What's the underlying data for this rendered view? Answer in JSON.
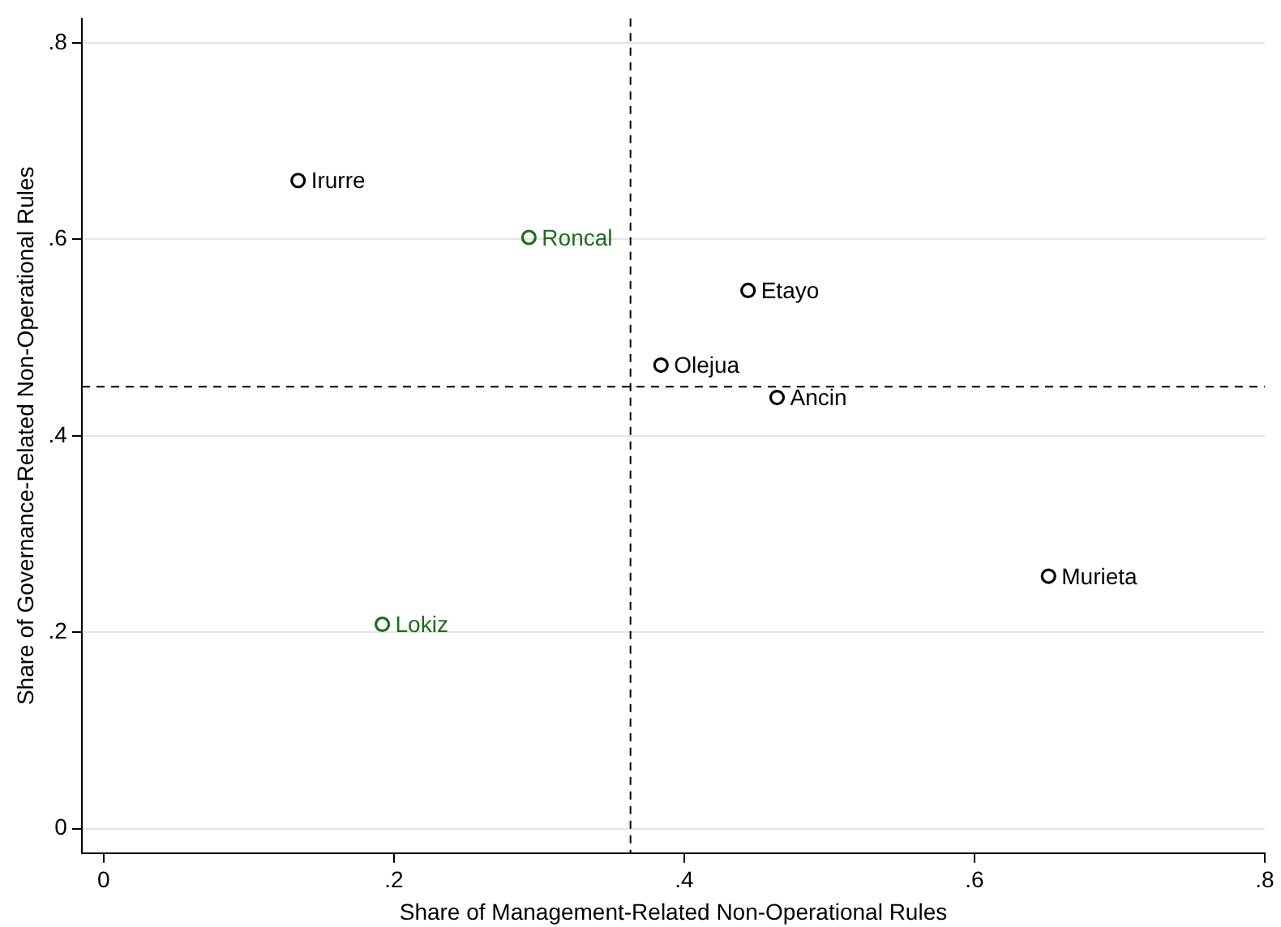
{
  "chart_data": {
    "type": "scatter",
    "xlabel": "Share of Management-Related Non-Operational Rules",
    "ylabel": "Share of Governance-Related Non-Operational Rules",
    "series": [
      {
        "color": "#000000",
        "x": [
          0.134,
          0.444,
          0.384,
          0.464,
          0.651
        ],
        "values": [
          0.66,
          0.548,
          0.472,
          0.439,
          0.257
        ]
      },
      {
        "color": "#1a6e1a",
        "x": [
          0.293,
          0.192
        ],
        "values": [
          0.602,
          0.208
        ]
      }
    ],
    "annotations": [
      {
        "text": "Irurre",
        "x": 0.134,
        "y": 0.66
      },
      {
        "text": "Roncal",
        "x": 0.293,
        "y": 0.602
      },
      {
        "text": "Etayo",
        "x": 0.444,
        "y": 0.548
      },
      {
        "text": "Olejua",
        "x": 0.384,
        "y": 0.472
      },
      {
        "text": "Ancin",
        "x": 0.464,
        "y": 0.439
      },
      {
        "text": "Murieta",
        "x": 0.651,
        "y": 0.257
      },
      {
        "text": "Lokiz",
        "x": 0.192,
        "y": 0.208
      }
    ],
    "ref_lines": [
      {
        "axis": "x",
        "value": 0.363,
        "line_style": "dashed",
        "color": "#000000"
      },
      {
        "axis": "y",
        "value": 0.45,
        "line_style": "dashed",
        "color": "#000000"
      }
    ],
    "xlim": [
      -0.015,
      0.8
    ],
    "ylim": [
      -0.025,
      0.825
    ],
    "xticks": [
      0,
      {
        "value": 0.2,
        "label": ".2"
      },
      {
        "value": 0.4,
        "label": ".4"
      },
      {
        "value": 0.6,
        "label": ".6"
      },
      {
        "value": 0.8,
        "label": ".8"
      }
    ],
    "yticks": [
      0,
      {
        "value": 0.2,
        "label": ".2"
      },
      {
        "value": 0.4,
        "label": ".4"
      },
      {
        "value": 0.6,
        "label": ".6"
      },
      {
        "value": 0.8,
        "label": ".8"
      }
    ],
    "grid": "y",
    "marker": "circle",
    "legend": false
  }
}
